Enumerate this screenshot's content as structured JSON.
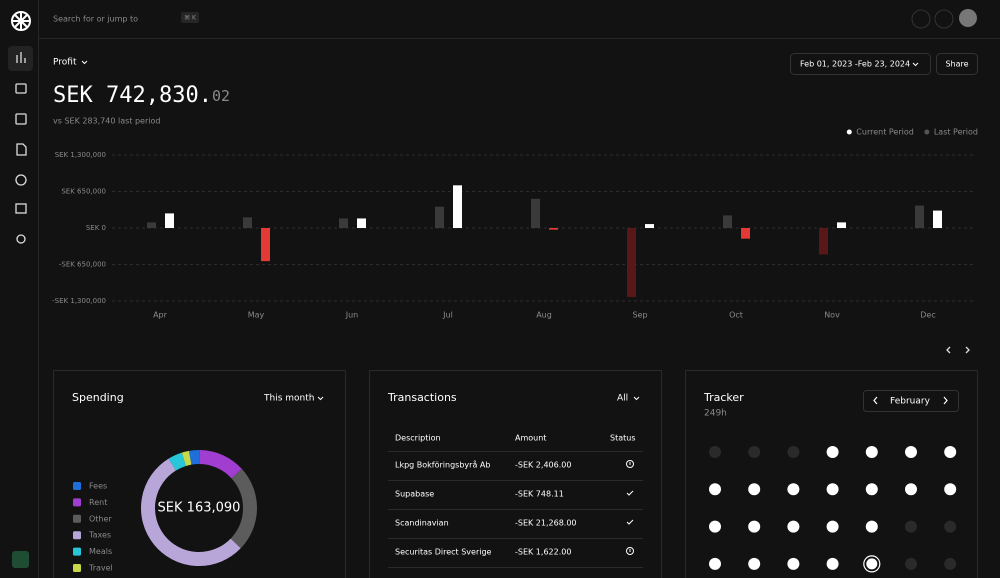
{
  "search": {
    "placeholder": "Search for or jump to",
    "shortcut": "⌘ K"
  },
  "header": {
    "metric": "Profit",
    "date_range": "Feb 01, 2023 -Feb 23, 2024",
    "share": "Share",
    "amount": "SEK 742,830.",
    "amount_decimals": "02",
    "comparison": "vs SEK 283,740 last period"
  },
  "chart_data": [
    {
      "type": "bar",
      "categories": [
        "Apr",
        "May",
        "Jun",
        "Jul",
        "Aug",
        "Sep",
        "Oct",
        "Nov",
        "Dec"
      ],
      "series": [
        {
          "name": "Current Period",
          "color": "#ffffff",
          "negative_color": "#e53935",
          "values": [
            260000,
            -590000,
            170000,
            760000,
            -30000,
            70000,
            -190000,
            100000,
            310000
          ]
        },
        {
          "name": "Last Period",
          "color": "#3a3a3a",
          "negative_color": "#5a1717",
          "values": [
            100000,
            190000,
            170000,
            380000,
            520000,
            -1230000,
            225000,
            -470000,
            400000
          ]
        }
      ],
      "ylim": [
        -1300000,
        1300000
      ],
      "yticks": [
        {
          "value": 1300000,
          "label": "SEK 1,300,000"
        },
        {
          "value": 650000,
          "label": "SEK 650,000"
        },
        {
          "value": 0,
          "label": "SEK 0"
        },
        {
          "value": -650000,
          "label": "-SEK 650,000"
        },
        {
          "value": -1300000,
          "label": "-SEK 1,300,000"
        }
      ],
      "grid": true,
      "legend": "top-right"
    },
    {
      "type": "pie",
      "title": "Spending",
      "period": "This month",
      "center_label": "SEK 163,090",
      "categories": [
        "Fees",
        "Rent",
        "Other",
        "Taxes",
        "Meals",
        "Travel"
      ],
      "values": [
        3,
        13,
        24,
        54,
        4,
        2
      ],
      "colors": [
        "#1e6fd9",
        "#a23dd1",
        "#5c5c5c",
        "#b9a6d9",
        "#27c6d9",
        "#c7d94a"
      ]
    }
  ],
  "transactions": {
    "title": "Transactions",
    "filter": "All",
    "columns": [
      "Description",
      "Amount",
      "Status"
    ],
    "rows": [
      [
        "Lkpg Bokföringsbyrå Ab",
        "-SEK 2,406.00"
      ],
      [
        "Supabase",
        "-SEK 748.11"
      ],
      [
        "Scandinavian",
        "-SEK 21,268.00"
      ],
      [
        "Securitas Direct Sverige",
        "-SEK 1,622.00"
      ]
    ]
  },
  "tracker": {
    "title": "Tracker",
    "total": "249h",
    "month": "February"
  }
}
